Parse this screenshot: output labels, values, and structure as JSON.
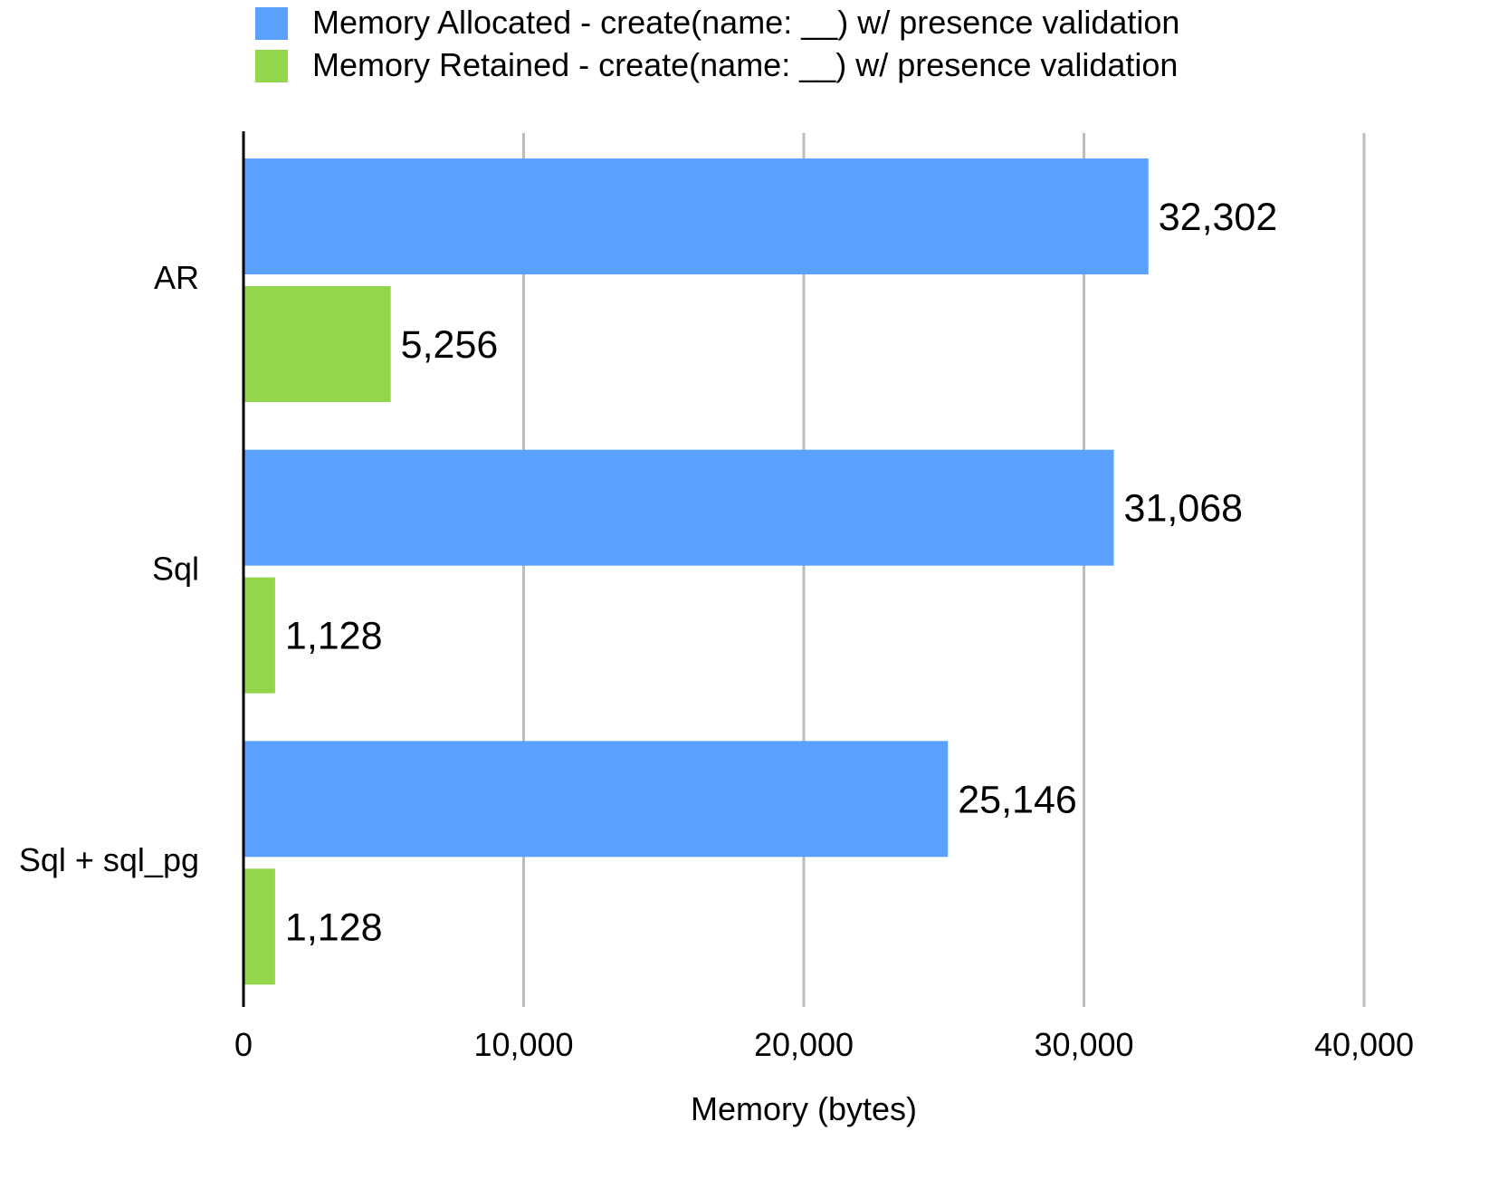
{
  "chart_data": {
    "type": "bar",
    "orientation": "horizontal",
    "title": "",
    "xlabel": "Memory (bytes)",
    "ylabel": "",
    "categories": [
      "AR",
      "Sql",
      "Sql + sql_pg"
    ],
    "series": [
      {
        "name": "Memory Allocated - create(name: __) w/ presence validation",
        "color": "#5ba1ff",
        "values": [
          32302,
          31068,
          25146
        ],
        "labels": [
          "32,302",
          "31,068",
          "25,146"
        ]
      },
      {
        "name": "Memory Retained - create(name: __) w/ presence validation",
        "color": "#92d64c",
        "values": [
          5256,
          1128,
          1128
        ],
        "labels": [
          "5,256",
          "1,128",
          "1,128"
        ]
      }
    ],
    "xlim": [
      0,
      40000
    ],
    "ticks": [
      {
        "value": 0,
        "label": "0"
      },
      {
        "value": 10000,
        "label": "10,000"
      },
      {
        "value": 20000,
        "label": "20,000"
      },
      {
        "value": 30000,
        "label": "30,000"
      },
      {
        "value": 40000,
        "label": "40,000"
      }
    ],
    "grid": true,
    "legend_position": "top"
  }
}
